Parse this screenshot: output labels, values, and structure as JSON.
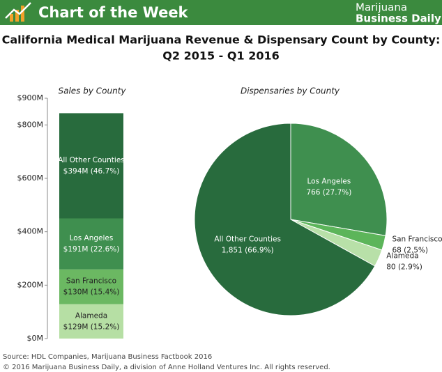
{
  "header": {
    "title": "Chart of the Week",
    "brand": [
      "Marijuana",
      "Business Daily"
    ]
  },
  "title": [
    "California Medical Marijuana Revenue & Dispensary Count by County:",
    "Q2 2015 - Q1 2016"
  ],
  "chart_data": [
    {
      "type": "stacked_bar",
      "title": "Sales by County",
      "ylim": [
        0,
        900
      ],
      "yticks": [
        {
          "value": 0,
          "label": "$0M"
        },
        {
          "value": 200,
          "label": "$200M"
        },
        {
          "value": 400,
          "label": "$400M"
        },
        {
          "value": 600,
          "label": "$600M"
        },
        {
          "value": 800,
          "label": "$800M"
        },
        {
          "value": 900,
          "label": "$900M"
        }
      ],
      "series": [
        {
          "name": "Alameda",
          "color": "#b6dfa4",
          "values": [
            129
          ],
          "value_labels": [
            "$129M (15.2%)"
          ]
        },
        {
          "name": "San Francisco",
          "color": "#6bb862",
          "values": [
            130
          ],
          "value_labels": [
            "$130M (15.4%)"
          ]
        },
        {
          "name": "Los Angeles",
          "color": "#3f8f4f",
          "values": [
            191
          ],
          "value_labels": [
            "$191M (22.6%)"
          ]
        },
        {
          "name": "All Other Counties",
          "color": "#286b3d",
          "values": [
            394
          ],
          "value_labels": [
            "$394M (46.7%)"
          ]
        }
      ]
    },
    {
      "type": "pie",
      "title": "Dispensaries by County",
      "categories": [
        "Los Angeles",
        "San Francisco",
        "Alameda",
        "All Other Counties"
      ],
      "values": [
        766,
        68,
        80,
        1851
      ],
      "value_labels": [
        "766 (27.7%)",
        "68 (2.5%)",
        "80 (2.9%)",
        "1,851 (66.9%)"
      ],
      "colors": [
        "#3f8f4f",
        "#5cb55a",
        "#b8e0a8",
        "#286b3d"
      ]
    }
  ],
  "footer": {
    "source": "Source: HDL Companies, Marijuana Business Factbook 2016",
    "copyright": "© 2016 Marijuana Business Daily, a division of Anne Holland Ventures Inc. All rights reserved."
  }
}
